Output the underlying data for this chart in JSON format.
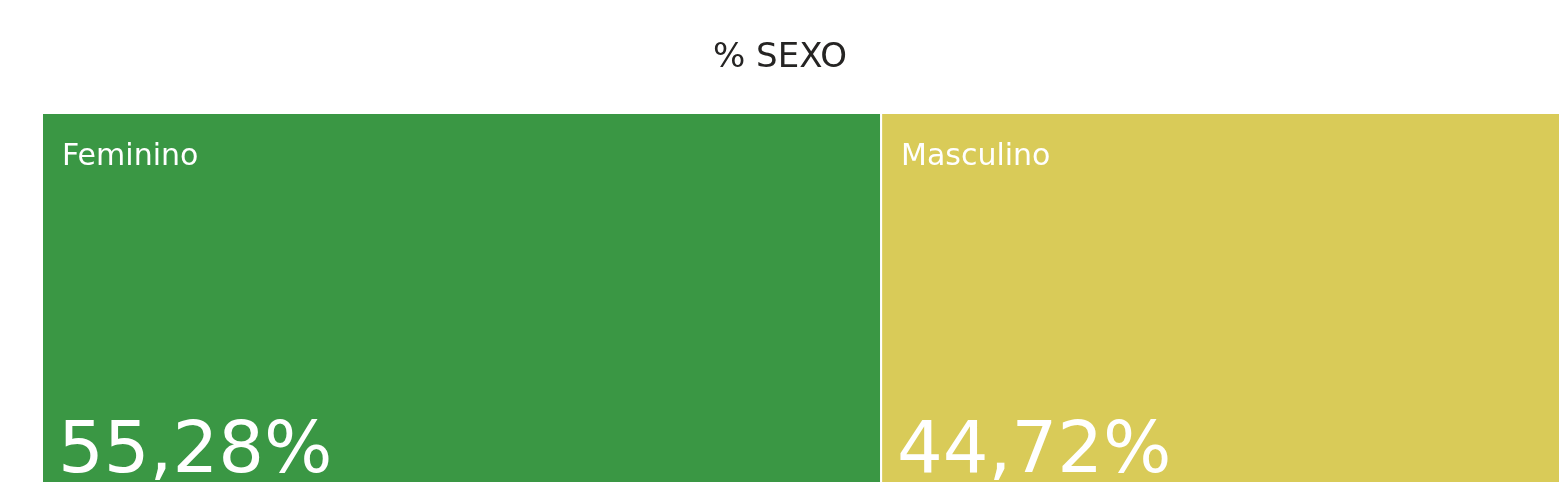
{
  "chart_data": {
    "type": "other",
    "title": "% SEXO",
    "categories": [
      "Feminino",
      "Masculino"
    ],
    "values": [
      55.28,
      44.72
    ],
    "colors": [
      "#3a9744",
      "#d9cb58"
    ],
    "value_labels": [
      "55,28%",
      "44,72%"
    ]
  }
}
